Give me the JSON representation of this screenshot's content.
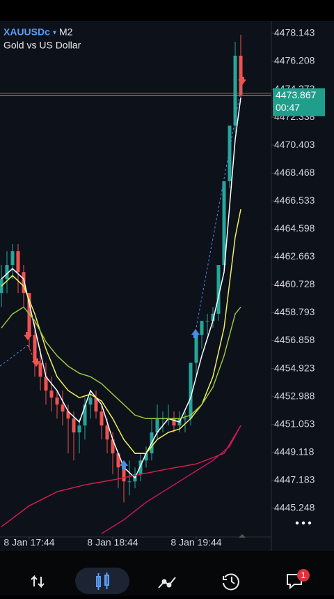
{
  "header": {
    "symbol": "XAUUSDc",
    "timeframe": "M2",
    "description": "Gold vs US Dollar"
  },
  "chart_data": {
    "type": "candlestick",
    "x": [
      0,
      1,
      2,
      3,
      4,
      5,
      6,
      7,
      8,
      9,
      10,
      11,
      12,
      13,
      14,
      15,
      16,
      17,
      18,
      19,
      20,
      21,
      22,
      23,
      24,
      25,
      26,
      27,
      28,
      29,
      30,
      31,
      32,
      33,
      34,
      35,
      36,
      37,
      38,
      39,
      40,
      41,
      42,
      43
    ],
    "open": [
      4460.16,
      4461.13,
      4462.1,
      4463.06,
      4461.61,
      4460.16,
      4457.26,
      4455.33,
      4454.36,
      4453.4,
      4452.91,
      4452.43,
      4451.95,
      4451.46,
      4450.5,
      4450.98,
      4452.43,
      4452.91,
      4451.95,
      4450.98,
      4450.01,
      4449.05,
      4448.08,
      4447.11,
      4447.11,
      4447.6,
      4448.56,
      4449.05,
      4450.5,
      4451.46,
      4451.46,
      4451.46,
      4450.98,
      4451.46,
      4451.46,
      4455.33,
      4457.26,
      4458.23,
      4458.23,
      4458.72,
      4462.1,
      4467.9,
      4471.76,
      4476.6
    ],
    "high": [
      4462.1,
      4463.06,
      4463.55,
      4463.55,
      4462.1,
      4460.16,
      4458.23,
      4456.3,
      4455.33,
      4454.36,
      4453.4,
      4453.4,
      4452.43,
      4451.95,
      4451.46,
      4452.91,
      4453.4,
      4453.4,
      4452.43,
      4451.46,
      4450.5,
      4449.05,
      4448.56,
      4448.56,
      4448.08,
      4449.05,
      4449.53,
      4451.46,
      4452.43,
      4451.95,
      4452.43,
      4451.95,
      4451.95,
      4451.95,
      4455.33,
      4457.26,
      4458.23,
      4458.72,
      4459.2,
      4462.1,
      4467.9,
      4471.76,
      4477.56,
      4478.05
    ],
    "low": [
      4459.2,
      4460.16,
      4461.13,
      4460.16,
      4459.2,
      4456.3,
      4454.36,
      4453.4,
      4452.43,
      4451.95,
      4451.46,
      4450.98,
      4449.05,
      4448.56,
      4449.05,
      4450.01,
      4451.46,
      4451.46,
      4450.01,
      4449.05,
      4447.6,
      4446.63,
      4445.66,
      4446.14,
      4446.63,
      4447.11,
      4448.08,
      4448.56,
      4450.01,
      4450.5,
      4450.98,
      4450.5,
      4450.5,
      4450.5,
      4450.98,
      4454.36,
      4456.3,
      4457.26,
      4457.75,
      4458.23,
      4461.61,
      4467.42,
      4471.28,
      4473.7
    ],
    "close": [
      4461.13,
      4462.1,
      4463.06,
      4461.61,
      4460.16,
      4457.26,
      4455.33,
      4454.36,
      4453.4,
      4452.91,
      4452.43,
      4451.95,
      4451.46,
      4450.5,
      4450.98,
      4452.43,
      4452.91,
      4451.95,
      4450.98,
      4450.01,
      4449.05,
      4448.08,
      4447.11,
      4447.11,
      4447.6,
      4448.56,
      4449.05,
      4450.5,
      4451.46,
      4451.46,
      4451.46,
      4450.98,
      4451.46,
      4451.46,
      4455.33,
      4457.26,
      4458.23,
      4458.23,
      4458.72,
      4462.1,
      4467.9,
      4471.76,
      4476.6,
      4473.867
    ],
    "up_color": "#26a69a",
    "down_color": "#ef5350",
    "xlim": [
      -0.25,
      48.5
    ],
    "xticks": [
      {
        "value": 5,
        "label": "8 Jan 17:44"
      },
      {
        "value": 20,
        "label": "8 Jan 18:44"
      },
      {
        "value": 35,
        "label": "8 Jan 19:44"
      }
    ],
    "ylim": [
      4443.26,
      4478.77
    ],
    "yticks": [
      4478.143,
      4476.208,
      4474.273,
      4472.338,
      4470.403,
      4468.468,
      4466.533,
      4464.598,
      4462.663,
      4460.728,
      4458.793,
      4456.858,
      4454.923,
      4452.988,
      4451.053,
      4449.118,
      4447.183,
      4445.248
    ],
    "current_price": 4473.867,
    "countdown": "00:47",
    "price_color": "#1f9e8c",
    "lines": [
      {
        "color": "#ffffff",
        "x": [
          0,
          2,
          4,
          6,
          8,
          10,
          12,
          14,
          16,
          18,
          20,
          22,
          24,
          26,
          28,
          30,
          32,
          34,
          36,
          38,
          40,
          42,
          43
        ],
        "values": [
          4461.13,
          4461.85,
          4461.13,
          4457.74,
          4454.36,
          4453.4,
          4451.95,
          4451.22,
          4453.4,
          4452.43,
          4450.01,
          4448.08,
          4447.35,
          4449.05,
          4450.5,
          4451.46,
          4451.22,
          4452.91,
          4455.81,
          4458.23,
          4461.61,
          4470.79,
          4473.69
        ]
      },
      {
        "color": "#f0f05a",
        "x": [
          0,
          2,
          4,
          6,
          8,
          10,
          12,
          14,
          16,
          18,
          20,
          22,
          24,
          26,
          28,
          30,
          32,
          34,
          36,
          38,
          40,
          42,
          43
        ],
        "values": [
          4460.64,
          4461.37,
          4460.64,
          4458.71,
          4456.29,
          4454.36,
          4453.4,
          4452.91,
          4453.15,
          4452.67,
          4451.46,
          4450.01,
          4449.05,
          4449.05,
          4450.01,
          4450.5,
          4450.74,
          4451.46,
          4452.43,
          4454.36,
          4457.74,
          4464.03,
          4465.96
        ]
      },
      {
        "color": "#9bc53d",
        "x": [
          0,
          2,
          4,
          6,
          8,
          10,
          12,
          14,
          16,
          18,
          20,
          22,
          24,
          26,
          28,
          30,
          32,
          34,
          36,
          38,
          40,
          42,
          43
        ],
        "values": [
          4457.74,
          4458.71,
          4459.19,
          4458.23,
          4456.78,
          4455.81,
          4455.09,
          4454.6,
          4454.36,
          4453.88,
          4453.15,
          4452.43,
          4451.7,
          4451.46,
          4451.46,
          4451.46,
          4451.46,
          4451.7,
          4452.43,
          4453.64,
          4455.81,
          4458.71,
          4459.19
        ]
      },
      {
        "color": "#d81b4a",
        "x": [
          0,
          5,
          10,
          15,
          20,
          25,
          30,
          35,
          40,
          43
        ],
        "values": [
          4443.97,
          4445.42,
          4446.39,
          4446.87,
          4447.21,
          4447.6,
          4447.98,
          4448.32,
          4449.05,
          4450.98
        ]
      },
      {
        "color": "#c2185b",
        "x": [
          18,
          22,
          26,
          30,
          34,
          38,
          41,
          43
        ],
        "values": [
          4443.49,
          4444.45,
          4445.66,
          4446.63,
          4447.6,
          4448.56,
          4449.53,
          4450.98
        ]
      }
    ]
  },
  "bottom_nav": {
    "badge": 1
  }
}
